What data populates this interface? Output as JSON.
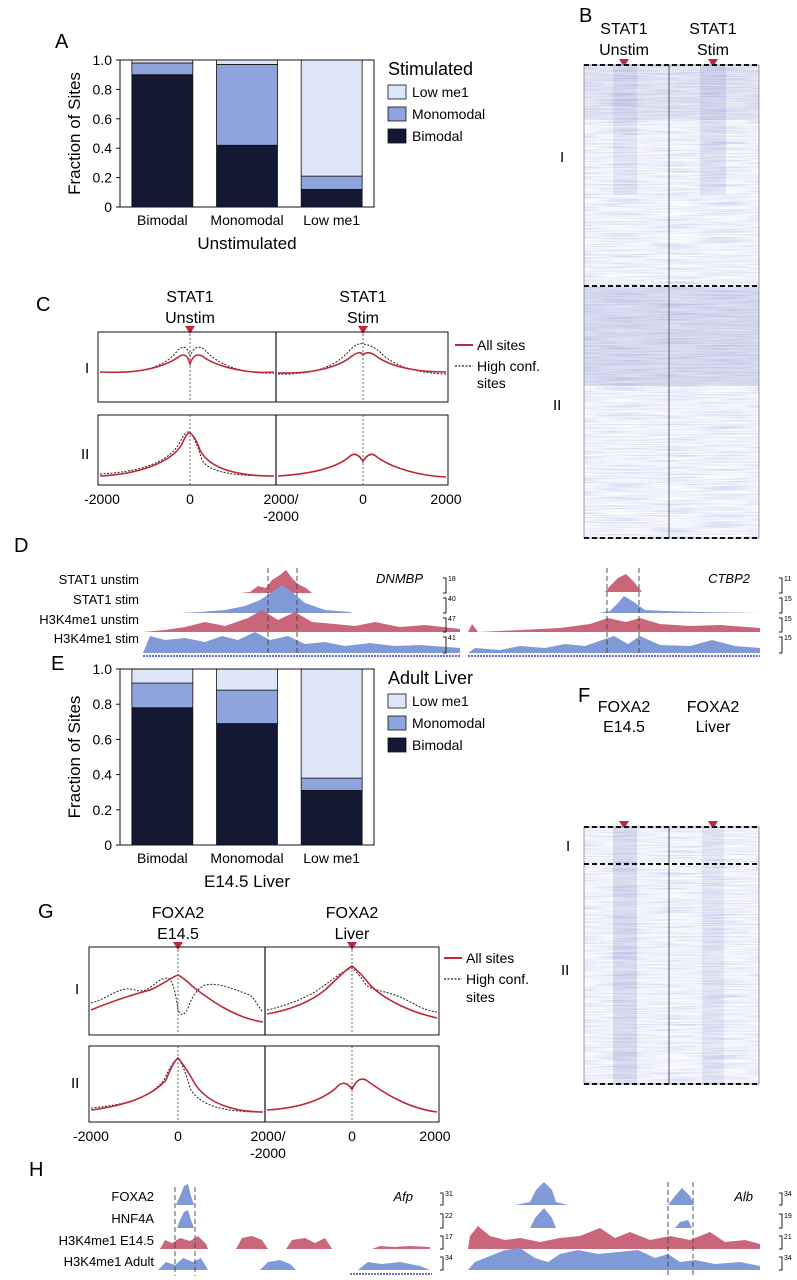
{
  "panel_letters": {
    "A": "A",
    "B": "B",
    "C": "C",
    "D": "D",
    "E": "E",
    "F": "F",
    "G": "G",
    "H": "H"
  },
  "chart_data": [
    {
      "id": "A",
      "type": "bar",
      "stacked": true,
      "categories": [
        "Bimodal",
        "Monomodal",
        "Low me1"
      ],
      "series": [
        {
          "name": "Bimodal",
          "values": [
            0.9,
            0.42,
            0.12
          ]
        },
        {
          "name": "Monomodal",
          "values": [
            0.08,
            0.55,
            0.09
          ]
        },
        {
          "name": "Low me1",
          "values": [
            0.02,
            0.03,
            0.79
          ]
        }
      ],
      "legend_title": "Stimulated",
      "legend_order": [
        "Low me1",
        "Monomodal",
        "Bimodal"
      ],
      "xlabel": "Unstimulated",
      "ylabel": "Fraction of Sites",
      "ylim": [
        0,
        1.0
      ],
      "yticks": [
        "0",
        "0.2",
        "0.4",
        "0.6",
        "0.8",
        "1.0"
      ],
      "colors": {
        "Bimodal": "#141833",
        "Monomodal": "#8ea4dc",
        "Low me1": "#dde6f6"
      }
    },
    {
      "id": "E",
      "type": "bar",
      "stacked": true,
      "categories": [
        "Bimodal",
        "Monomodal",
        "Low me1"
      ],
      "series": [
        {
          "name": "Bimodal",
          "values": [
            0.78,
            0.69,
            0.31
          ]
        },
        {
          "name": "Monomodal",
          "values": [
            0.14,
            0.19,
            0.07
          ]
        },
        {
          "name": "Low me1",
          "values": [
            0.08,
            0.12,
            0.62
          ]
        }
      ],
      "legend_title": "Adult Liver",
      "legend_order": [
        "Low me1",
        "Monomodal",
        "Bimodal"
      ],
      "xlabel": "E14.5 Liver",
      "ylabel": "Fraction of Sites",
      "ylim": [
        0,
        1.0
      ],
      "yticks": [
        "0",
        "0.2",
        "0.4",
        "0.6",
        "0.8",
        "1.0"
      ],
      "colors": {
        "Bimodal": "#141833",
        "Monomodal": "#8ea4dc",
        "Low me1": "#dde6f6"
      }
    }
  ],
  "panelB": {
    "col1": [
      "STAT1",
      "Unstim"
    ],
    "col2": [
      "STAT1",
      "Stim"
    ],
    "cluster1": "I",
    "cluster2": "II"
  },
  "panelC": {
    "col1": [
      "STAT1",
      "Unstim"
    ],
    "col2": [
      "STAT1",
      "Stim"
    ],
    "row1": "I",
    "row2": "II",
    "legend_all": "All sites",
    "legend_high1": "High conf.",
    "legend_high2": "sites",
    "xticks": [
      "-2000",
      "0",
      "2000/",
      "-2000",
      "0",
      "2000"
    ]
  },
  "panelD": {
    "tracks": [
      "STAT1 unstim",
      "STAT1 stim",
      "H3K4me1 unstim",
      "H3K4me1 stim"
    ],
    "gene_left": "DNMBP",
    "gene_right": "CTBP2",
    "scale_left": [
      "18",
      "40",
      "47",
      "41"
    ],
    "scale_right": [
      "11",
      "15",
      "15",
      "15"
    ]
  },
  "panelF": {
    "col1": [
      "FOXA2",
      "E14.5"
    ],
    "col2": [
      "FOXA2",
      "Liver"
    ],
    "cluster1": "I",
    "cluster2": "II"
  },
  "panelG": {
    "col1": [
      "FOXA2",
      "E14.5"
    ],
    "col2": [
      "FOXA2",
      "Liver"
    ],
    "row1": "I",
    "row2": "II",
    "legend_all": "All sites",
    "legend_high1": "High conf.",
    "legend_high2": "sites",
    "xticks": [
      "-2000",
      "0",
      "2000/",
      "-2000",
      "0",
      "2000"
    ]
  },
  "panelH": {
    "tracks": [
      "FOXA2",
      "HNF4A",
      "H3K4me1 E14.5",
      "H3K4me1 Adult"
    ],
    "gene_left": "Afp",
    "gene_right": "Alb",
    "scale_left": [
      "31",
      "22",
      "17",
      "34"
    ],
    "scale_right": [
      "34",
      "19",
      "21",
      "34"
    ]
  },
  "colors": {
    "red": "#c0273a",
    "pink": "#c9667a",
    "blue": "#7f9ad6",
    "heat": "#5560b0"
  }
}
